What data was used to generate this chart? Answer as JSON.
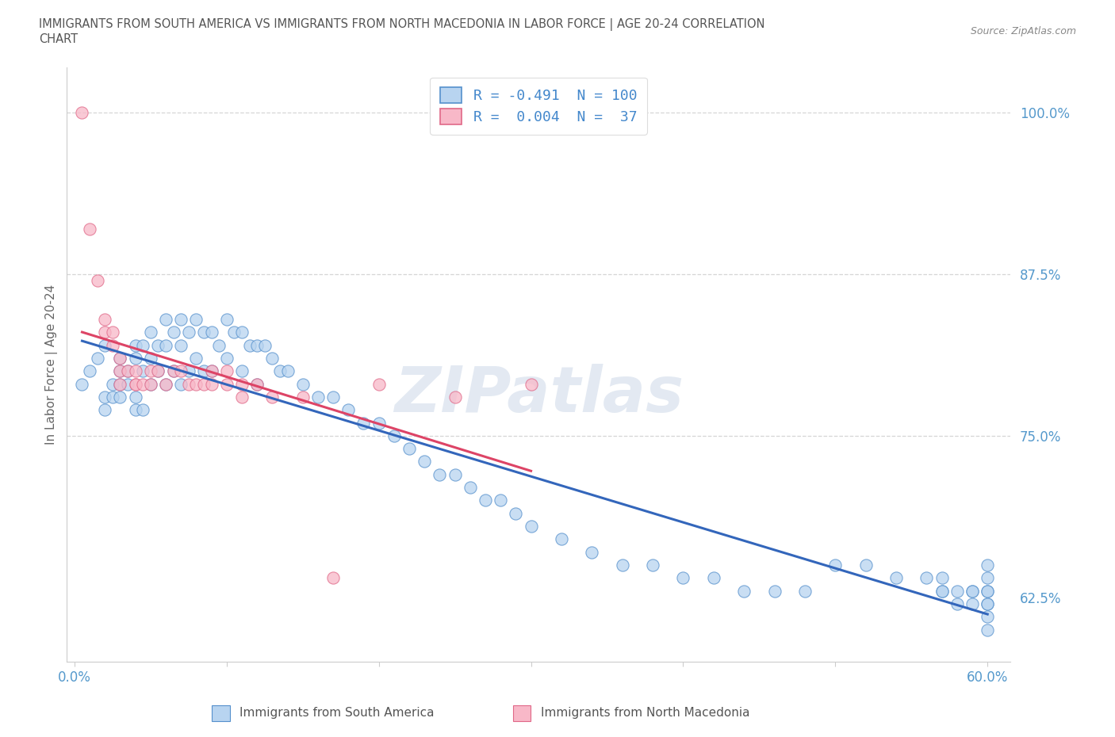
{
  "title_line1": "IMMIGRANTS FROM SOUTH AMERICA VS IMMIGRANTS FROM NORTH MACEDONIA IN LABOR FORCE | AGE 20-24 CORRELATION",
  "title_line2": "CHART",
  "source": "Source: ZipAtlas.com",
  "ylabel": "In Labor Force | Age 20-24",
  "xlim": [
    -0.005,
    0.615
  ],
  "ylim": [
    0.575,
    1.035
  ],
  "xtick_vals": [
    0.0,
    0.1,
    0.2,
    0.3,
    0.4,
    0.5,
    0.6
  ],
  "xticklabels": [
    "0.0%",
    "",
    "",
    "",
    "",
    "",
    "60.0%"
  ],
  "ytick_right_vals": [
    0.625,
    0.75,
    0.875,
    1.0
  ],
  "ytick_right_labels": [
    "62.5%",
    "75.0%",
    "87.5%",
    "100.0%"
  ],
  "blue_fill": "#b8d4f0",
  "blue_edge": "#5590cc",
  "pink_fill": "#f8b8c8",
  "pink_edge": "#e06888",
  "blue_line_color": "#3366bb",
  "pink_line_color": "#dd4466",
  "dashed_color": "#cccccc",
  "watermark": "ZIPatlas",
  "background_color": "#ffffff",
  "blue_scatter_x": [
    0.005,
    0.01,
    0.015,
    0.02,
    0.02,
    0.02,
    0.025,
    0.025,
    0.03,
    0.03,
    0.03,
    0.03,
    0.035,
    0.035,
    0.04,
    0.04,
    0.04,
    0.04,
    0.045,
    0.045,
    0.045,
    0.05,
    0.05,
    0.05,
    0.055,
    0.055,
    0.06,
    0.06,
    0.06,
    0.065,
    0.065,
    0.07,
    0.07,
    0.07,
    0.075,
    0.075,
    0.08,
    0.08,
    0.085,
    0.085,
    0.09,
    0.09,
    0.095,
    0.1,
    0.1,
    0.105,
    0.11,
    0.11,
    0.115,
    0.12,
    0.12,
    0.125,
    0.13,
    0.135,
    0.14,
    0.15,
    0.16,
    0.17,
    0.18,
    0.19,
    0.2,
    0.21,
    0.22,
    0.23,
    0.24,
    0.25,
    0.26,
    0.27,
    0.28,
    0.29,
    0.3,
    0.32,
    0.34,
    0.36,
    0.38,
    0.4,
    0.42,
    0.44,
    0.46,
    0.48,
    0.5,
    0.52,
    0.54,
    0.56,
    0.57,
    0.57,
    0.57,
    0.58,
    0.58,
    0.59,
    0.59,
    0.59,
    0.6,
    0.6,
    0.6,
    0.6,
    0.6,
    0.6,
    0.6,
    0.6
  ],
  "blue_scatter_y": [
    0.79,
    0.8,
    0.81,
    0.78,
    0.77,
    0.82,
    0.79,
    0.78,
    0.81,
    0.8,
    0.79,
    0.78,
    0.8,
    0.79,
    0.82,
    0.81,
    0.78,
    0.77,
    0.82,
    0.8,
    0.77,
    0.83,
    0.81,
    0.79,
    0.82,
    0.8,
    0.84,
    0.82,
    0.79,
    0.83,
    0.8,
    0.84,
    0.82,
    0.79,
    0.83,
    0.8,
    0.84,
    0.81,
    0.83,
    0.8,
    0.83,
    0.8,
    0.82,
    0.84,
    0.81,
    0.83,
    0.83,
    0.8,
    0.82,
    0.82,
    0.79,
    0.82,
    0.81,
    0.8,
    0.8,
    0.79,
    0.78,
    0.78,
    0.77,
    0.76,
    0.76,
    0.75,
    0.74,
    0.73,
    0.72,
    0.72,
    0.71,
    0.7,
    0.7,
    0.69,
    0.68,
    0.67,
    0.66,
    0.65,
    0.65,
    0.64,
    0.64,
    0.63,
    0.63,
    0.63,
    0.65,
    0.65,
    0.64,
    0.64,
    0.64,
    0.63,
    0.63,
    0.63,
    0.62,
    0.63,
    0.62,
    0.63,
    0.64,
    0.63,
    0.62,
    0.63,
    0.65,
    0.62,
    0.61,
    0.6
  ],
  "pink_scatter_x": [
    0.005,
    0.01,
    0.015,
    0.02,
    0.02,
    0.025,
    0.025,
    0.03,
    0.03,
    0.03,
    0.035,
    0.04,
    0.04,
    0.04,
    0.045,
    0.05,
    0.05,
    0.055,
    0.06,
    0.065,
    0.07,
    0.075,
    0.08,
    0.085,
    0.09,
    0.09,
    0.1,
    0.1,
    0.11,
    0.11,
    0.12,
    0.13,
    0.15,
    0.17,
    0.2,
    0.25,
    0.3
  ],
  "pink_scatter_y": [
    1.0,
    0.91,
    0.87,
    0.84,
    0.83,
    0.83,
    0.82,
    0.81,
    0.8,
    0.79,
    0.8,
    0.8,
    0.79,
    0.79,
    0.79,
    0.8,
    0.79,
    0.8,
    0.79,
    0.8,
    0.8,
    0.79,
    0.79,
    0.79,
    0.8,
    0.79,
    0.8,
    0.79,
    0.79,
    0.78,
    0.79,
    0.78,
    0.78,
    0.64,
    0.79,
    0.78,
    0.79
  ]
}
